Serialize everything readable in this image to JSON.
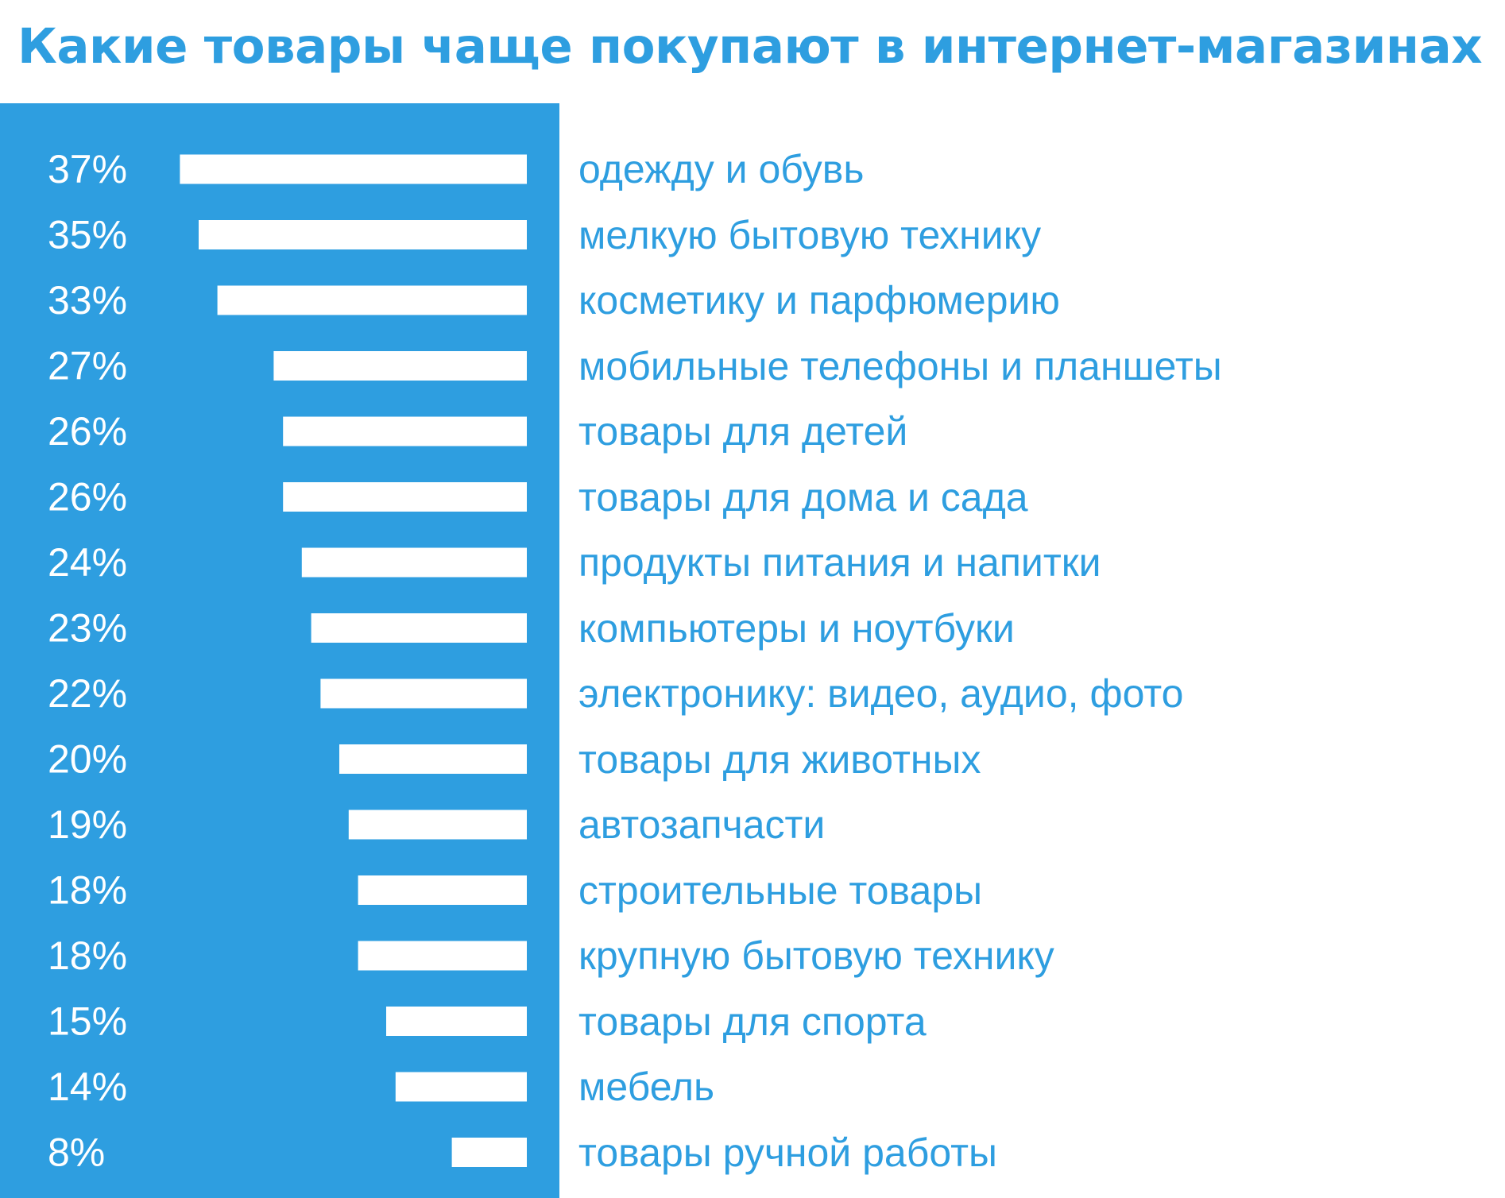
{
  "chart_data": {
    "type": "bar",
    "orientation": "horizontal",
    "title": "Какие товары чаще покупают в интернет-магазинах",
    "categories": [
      "одежду и обувь",
      "мелкую бытовую технику",
      "косметику и парфюмерию",
      "мобильные телефоны и планшеты",
      "товары для детей",
      "товары для дома и сада",
      "продукты питания и напитки",
      "компьютеры и ноутбуки",
      "электронику: видео, аудио, фото",
      "товары для животных",
      "автозапчасти",
      "строительные товары",
      "крупную бытовую технику",
      "товары для спорта",
      "мебель",
      "товары ручной работы"
    ],
    "values": [
      37,
      35,
      33,
      27,
      26,
      26,
      24,
      23,
      22,
      20,
      19,
      18,
      18,
      15,
      14,
      8
    ],
    "value_labels": [
      "37%",
      "35%",
      "33%",
      "27%",
      "26%",
      "26%",
      "24%",
      "23%",
      "22%",
      "20%",
      "19%",
      "18%",
      "18%",
      "15%",
      "14%",
      "8%"
    ],
    "unit": "%",
    "grid": false,
    "legend": "none",
    "bars_grow_from": "right"
  },
  "colors": {
    "accent": "#2e9ee0",
    "title": "#2e9ee0",
    "panel": "#2e9ee0",
    "bar": "#ffffff",
    "value_text": "#ffffff",
    "label_text": "#2e9ee0",
    "background": "#ffffff"
  }
}
